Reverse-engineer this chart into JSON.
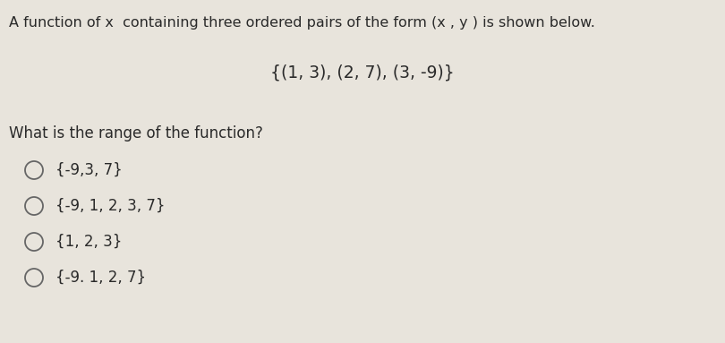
{
  "background_color": "#e8e4dc",
  "title_line1": "A function of x  containing three ordered pairs of the form (x , y ) is shown below.",
  "set_display": "{(1, 3), (2, 7), (3, -9)}",
  "question": "What is the range of the function?",
  "options": [
    "{-9,3, 7}",
    "{-9, 1, 2, 3, 7}",
    "{1, 2, 3}",
    "{-9. 1, 2, 7}"
  ],
  "title_fontsize": 11.5,
  "set_fontsize": 13.5,
  "question_fontsize": 12,
  "option_fontsize": 12,
  "text_color": "#2a2a2a",
  "circle_color": "#666666",
  "fig_width": 8.1,
  "fig_height": 3.83,
  "dpi": 100
}
